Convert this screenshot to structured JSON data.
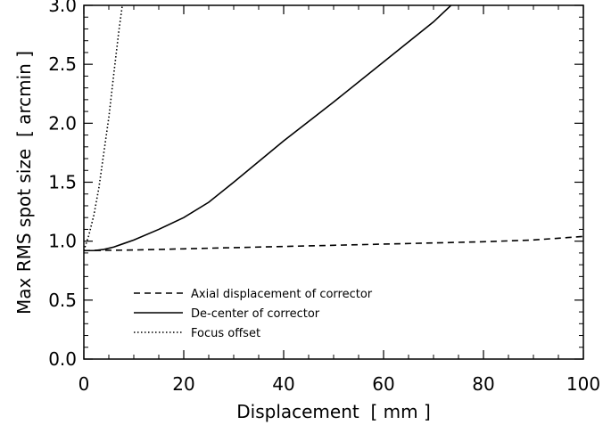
{
  "chart_data": {
    "type": "line",
    "title": "",
    "xlabel": "Displacement  [ mm ]",
    "ylabel": "Max RMS spot size  [ arcmin ]",
    "xlim": [
      0,
      100
    ],
    "ylim": [
      0.0,
      3.0
    ],
    "x_ticks": [
      0,
      20,
      40,
      60,
      80,
      100
    ],
    "x_tick_labels": [
      "0",
      "20",
      "40",
      "60",
      "80",
      "100"
    ],
    "y_ticks": [
      0.0,
      0.5,
      1.0,
      1.5,
      2.0,
      2.5,
      3.0
    ],
    "y_tick_labels": [
      "0.0",
      "0.5",
      "1.0",
      "1.5",
      "2.0",
      "2.5",
      "3.0"
    ],
    "grid": false,
    "legend_position": "bottom-left",
    "series": [
      {
        "name": "Axial displacement of corrector",
        "line_style": "dashed",
        "color": "#000000",
        "x": [
          0,
          10,
          20,
          30,
          40,
          50,
          60,
          70,
          80,
          90,
          100
        ],
        "y": [
          0.92,
          0.925,
          0.935,
          0.945,
          0.955,
          0.965,
          0.975,
          0.985,
          0.995,
          1.01,
          1.04
        ]
      },
      {
        "name": "De-center of corrector",
        "line_style": "solid",
        "color": "#000000",
        "x": [
          0,
          2,
          4,
          6,
          8,
          10,
          15,
          20,
          25,
          30,
          40,
          50,
          60,
          70,
          73.5
        ],
        "y": [
          0.92,
          0.92,
          0.93,
          0.95,
          0.98,
          1.01,
          1.1,
          1.2,
          1.33,
          1.5,
          1.85,
          2.18,
          2.52,
          2.86,
          3.0
        ]
      },
      {
        "name": "Focus offset",
        "line_style": "dotted",
        "color": "#000000",
        "x": [
          0,
          1,
          2,
          3,
          4,
          5,
          6,
          7,
          7.7
        ],
        "y": [
          0.92,
          1.05,
          1.22,
          1.45,
          1.75,
          2.05,
          2.42,
          2.78,
          3.0
        ]
      }
    ]
  }
}
